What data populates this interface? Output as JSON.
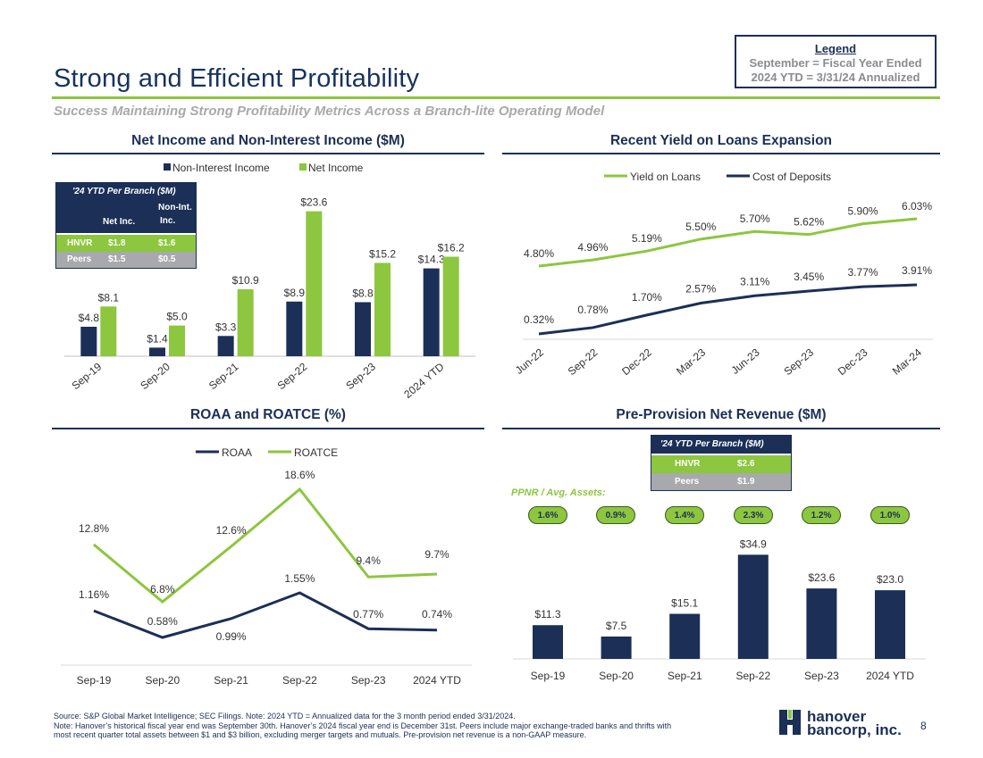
{
  "header": {
    "title": "Strong and Efficient Profitability",
    "subtitle": "Success Maintaining Strong Profitability Metrics Across a Branch-lite Operating Model"
  },
  "legend": {
    "heading": "Legend",
    "line1": "September = Fiscal Year Ended",
    "line2": "2024 YTD = 3/31/24 Annualized"
  },
  "colors": {
    "navy": "#1b2f57",
    "green": "#8dc63f",
    "gray": "#a7a9ac"
  },
  "panels": {
    "net_income_title": "Net Income and Non-Interest Income ($M)",
    "yield_title": "Recent Yield on Loans Expansion",
    "roa_title": "ROAA and ROATCE (%)",
    "ppnr_title": "Pre-Provision Net Revenue ($M)"
  },
  "branch_table_1": {
    "title": "'24 YTD Per Branch ($M)",
    "col1": "Net Inc.",
    "col2_line1": "Non-Int.",
    "col2_line2": "Inc.",
    "hnvr_label": "HNVR",
    "hnvr_net": "$1.8",
    "hnvr_nonint": "$1.6",
    "peers_label": "Peers",
    "peers_net": "$1.5",
    "peers_nonint": "$0.5"
  },
  "branch_table_2": {
    "title": "'24 YTD Per Branch ($M)",
    "hnvr_label": "HNVR",
    "hnvr_val": "$2.6",
    "peers_label": "Peers",
    "peers_val": "$1.9"
  },
  "ppnr_assets": {
    "label": "PPNR / Avg. Assets:",
    "values": [
      "1.6%",
      "0.9%",
      "1.4%",
      "2.3%",
      "1.2%",
      "1.0%"
    ]
  },
  "chart_data": [
    {
      "type": "bar",
      "title": "Net Income and Non-Interest Income ($M)",
      "categories": [
        "Sep-19",
        "Sep-20",
        "Sep-21",
        "Sep-22",
        "Sep-23",
        "2024 YTD"
      ],
      "series": [
        {
          "name": "Non-Interest Income",
          "values": [
            4.8,
            1.4,
            3.3,
            8.9,
            8.8,
            14.3
          ],
          "labels": [
            "$4.8",
            "$1.4",
            "$3.3",
            "$8.9",
            "$8.8",
            "$14.3"
          ],
          "color": "#1b2f57"
        },
        {
          "name": "Net Income",
          "values": [
            8.1,
            5.0,
            10.9,
            23.6,
            15.2,
            16.2
          ],
          "labels": [
            "$8.1",
            "$5.0",
            "$10.9",
            "$23.6",
            "$15.2",
            "$16.2"
          ],
          "color": "#8dc63f"
        }
      ],
      "ylim": [
        0,
        25
      ],
      "legend": "top"
    },
    {
      "type": "line",
      "title": "Recent Yield on Loans Expansion",
      "categories": [
        "Jun-22",
        "Sep-22",
        "Dec-22",
        "Mar-23",
        "Jun-23",
        "Sep-23",
        "Dec-23",
        "Mar-24"
      ],
      "series": [
        {
          "name": "Yield on Loans",
          "values": [
            4.8,
            4.96,
            5.19,
            5.5,
            5.7,
            5.62,
            5.9,
            6.03
          ],
          "labels": [
            "4.80%",
            "4.96%",
            "5.19%",
            "5.50%",
            "5.70%",
            "5.62%",
            "5.90%",
            "6.03%"
          ],
          "color": "#8dc63f"
        },
        {
          "name": "Cost of Deposits",
          "values": [
            0.32,
            0.78,
            1.7,
            2.57,
            3.11,
            3.45,
            3.77,
            3.91
          ],
          "labels": [
            "0.32%",
            "0.78%",
            "1.70%",
            "2.57%",
            "3.11%",
            "3.45%",
            "3.77%",
            "3.91%"
          ],
          "color": "#1b2f57"
        }
      ],
      "legend": "top"
    },
    {
      "type": "line",
      "title": "ROAA and ROATCE (%)",
      "categories": [
        "Sep-19",
        "Sep-20",
        "Sep-21",
        "Sep-22",
        "Sep-23",
        "2024 YTD"
      ],
      "series": [
        {
          "name": "ROAA",
          "values": [
            1.16,
            0.58,
            0.99,
            1.55,
            0.77,
            0.74
          ],
          "labels": [
            "1.16%",
            "0.58%",
            "0.99%",
            "1.55%",
            "0.77%",
            "0.74%"
          ],
          "color": "#1b2f57"
        },
        {
          "name": "ROATCE",
          "values": [
            12.8,
            6.8,
            12.6,
            18.6,
            9.4,
            9.7
          ],
          "labels": [
            "12.8%",
            "6.8%",
            "12.6%",
            "18.6%",
            "9.4%",
            "9.7%"
          ],
          "color": "#8dc63f"
        }
      ],
      "legend": "top"
    },
    {
      "type": "bar",
      "title": "Pre-Provision Net Revenue ($M)",
      "categories": [
        "Sep-19",
        "Sep-20",
        "Sep-21",
        "Sep-22",
        "Sep-23",
        "2024 YTD"
      ],
      "series": [
        {
          "name": "PPNR",
          "values": [
            11.3,
            7.5,
            15.1,
            34.9,
            23.6,
            23.0
          ],
          "labels": [
            "$11.3",
            "$7.5",
            "$15.1",
            "$34.9",
            "$23.6",
            "$23.0"
          ],
          "color": "#1b2f57"
        }
      ],
      "ylim": [
        0,
        35
      ]
    }
  ],
  "footer": {
    "line1": "Source: S&P Global Market Intelligence; SEC Filings. Note: 2024 YTD = Annualized data for the 3 month period ended 3/31/2024.",
    "line2": "Note: Hanover’s historical fiscal year end was September 30th. Hanover’s 2024 fiscal year end is December 31st. Peers include major exchange-traded banks and thrifts with",
    "line3": "most recent quarter total assets between $1 and $3 billion, excluding merger targets and mutuals. Pre-provision net revenue is a non-GAAP measure.",
    "page": "8",
    "logo_line1": "hanover",
    "logo_line2": "bancorp, inc."
  }
}
